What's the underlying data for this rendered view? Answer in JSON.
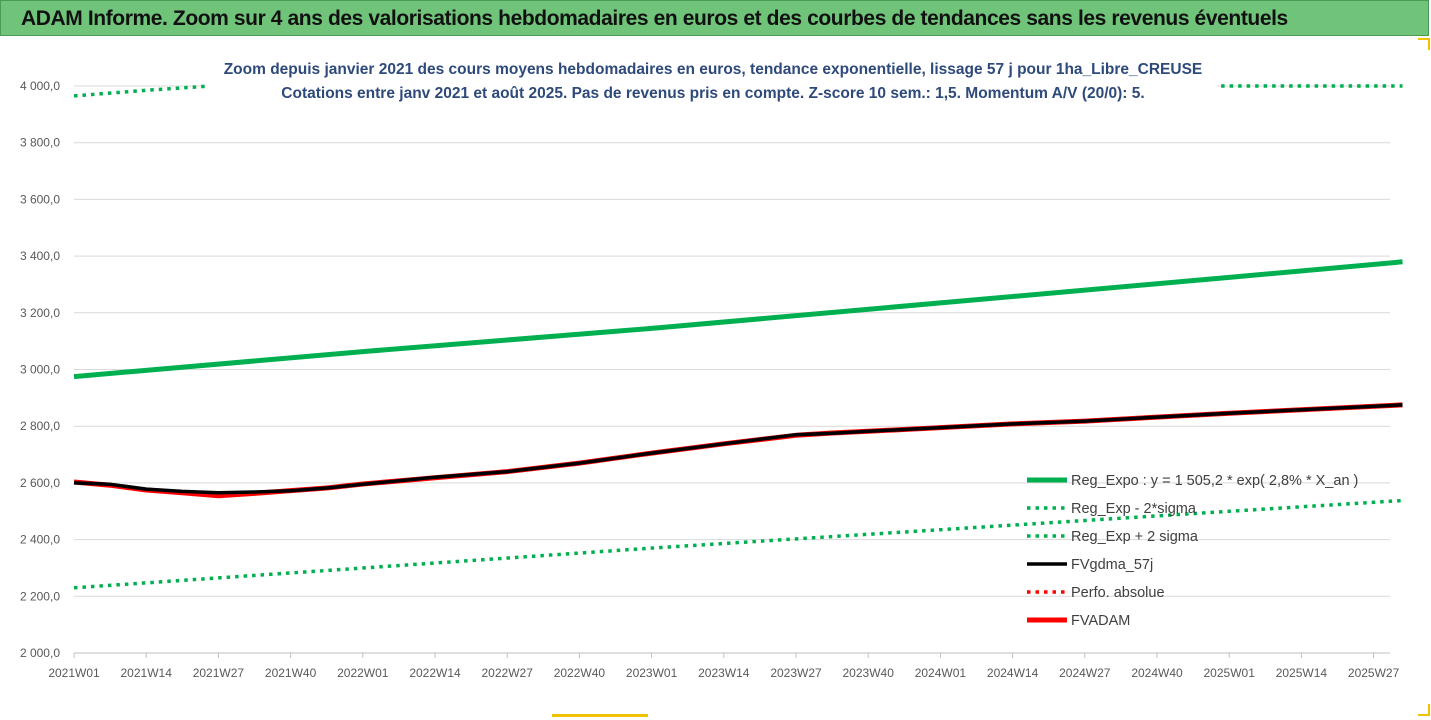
{
  "banner": {
    "title": "ADAM Informe. Zoom sur 4 ans des valorisations hebdomadaires en euros et des courbes de tendances sans les revenus éventuels"
  },
  "chart_data": {
    "type": "line",
    "title": "Zoom depuis janvier 2021 des cours moyens hebdomadaires en euros, tendance exponentielle, lissage 57 j pour 1ha_Libre_CREUSE",
    "subtitle": "Cotations entre janv 2021 et août 2025.  Pas de revenus pris en compte. Z-score 10 sem.: 1,5. Momentum A/V (20/0): 5.",
    "xlabel": "",
    "ylabel": "",
    "x_ticks": [
      "2021W01",
      "2021W14",
      "2021W27",
      "2021W40",
      "2022W01",
      "2022W14",
      "2022W27",
      "2022W40",
      "2023W01",
      "2023W14",
      "2023W27",
      "2023W40",
      "2024W01",
      "2024W14",
      "2024W27",
      "2024W40",
      "2025W01",
      "2025W14",
      "2025W27"
    ],
    "y_ticks": [
      "2 000,0",
      "2 200,0",
      "2 400,0",
      "2 600,0",
      "2 800,0",
      "3 000,0",
      "3 200,0",
      "3 400,0",
      "3 600,0",
      "3 800,0",
      "4 000,0"
    ],
    "ylim": [
      2000,
      4000
    ],
    "xlim": [
      0,
      18.4
    ],
    "grid": "horizontal",
    "legend_position": "right",
    "colors": {
      "green": "#00b050",
      "red": "#ff0000",
      "black": "#000000"
    },
    "series": [
      {
        "name": "Reg_Expo : y = 1 505,2 * exp( 2,8% *  X_an )",
        "color": "#00b050",
        "style": "solid-thick",
        "x": [
          0,
          4,
          8,
          12,
          16,
          18.4
        ],
        "y": [
          2975,
          3063,
          3145,
          3235,
          3325,
          3380
        ]
      },
      {
        "name": "Reg_Exp - 2*sigma",
        "color": "#00b050",
        "style": "dotted",
        "x": [
          0,
          4,
          8,
          12,
          16,
          18.4
        ],
        "y": [
          2230,
          2300,
          2370,
          2435,
          2500,
          2538
        ]
      },
      {
        "name": "Reg_Exp + 2 sigma",
        "color": "#00b050",
        "style": "dotted",
        "x": [
          0,
          1,
          1.9,
          16.5,
          17.4,
          18.4
        ],
        "y": [
          3965,
          3985,
          4000,
          4000,
          4000,
          4000
        ]
      },
      {
        "name": "FVgdma_57j",
        "color": "#000000",
        "style": "solid",
        "x": [
          0,
          0.5,
          1,
          1.5,
          2,
          2.5,
          3,
          3.5,
          4,
          5,
          6,
          7,
          8,
          9,
          10,
          10.5,
          11,
          12,
          13,
          14,
          15,
          16,
          17,
          18.4
        ],
        "y": [
          2600,
          2595,
          2578,
          2570,
          2565,
          2568,
          2572,
          2582,
          2595,
          2620,
          2640,
          2670,
          2705,
          2738,
          2770,
          2775,
          2782,
          2795,
          2808,
          2818,
          2832,
          2846,
          2858,
          2875
        ]
      },
      {
        "name": "Perfo. absolue",
        "color": "#ff0000",
        "style": "dotted",
        "x": [],
        "y": []
      },
      {
        "name": "FVADAM",
        "color": "#ff0000",
        "style": "solid-thick",
        "x": [
          0,
          0.5,
          1,
          1.5,
          2,
          2.5,
          3,
          3.5,
          4,
          5,
          6,
          7,
          8,
          9,
          10,
          10.5,
          11,
          12,
          13,
          14,
          15,
          16,
          17,
          18.4
        ],
        "y": [
          2603,
          2592,
          2575,
          2565,
          2555,
          2563,
          2573,
          2582,
          2596,
          2618,
          2640,
          2670,
          2705,
          2738,
          2768,
          2776,
          2782,
          2795,
          2808,
          2818,
          2832,
          2846,
          2858,
          2875
        ]
      }
    ]
  }
}
